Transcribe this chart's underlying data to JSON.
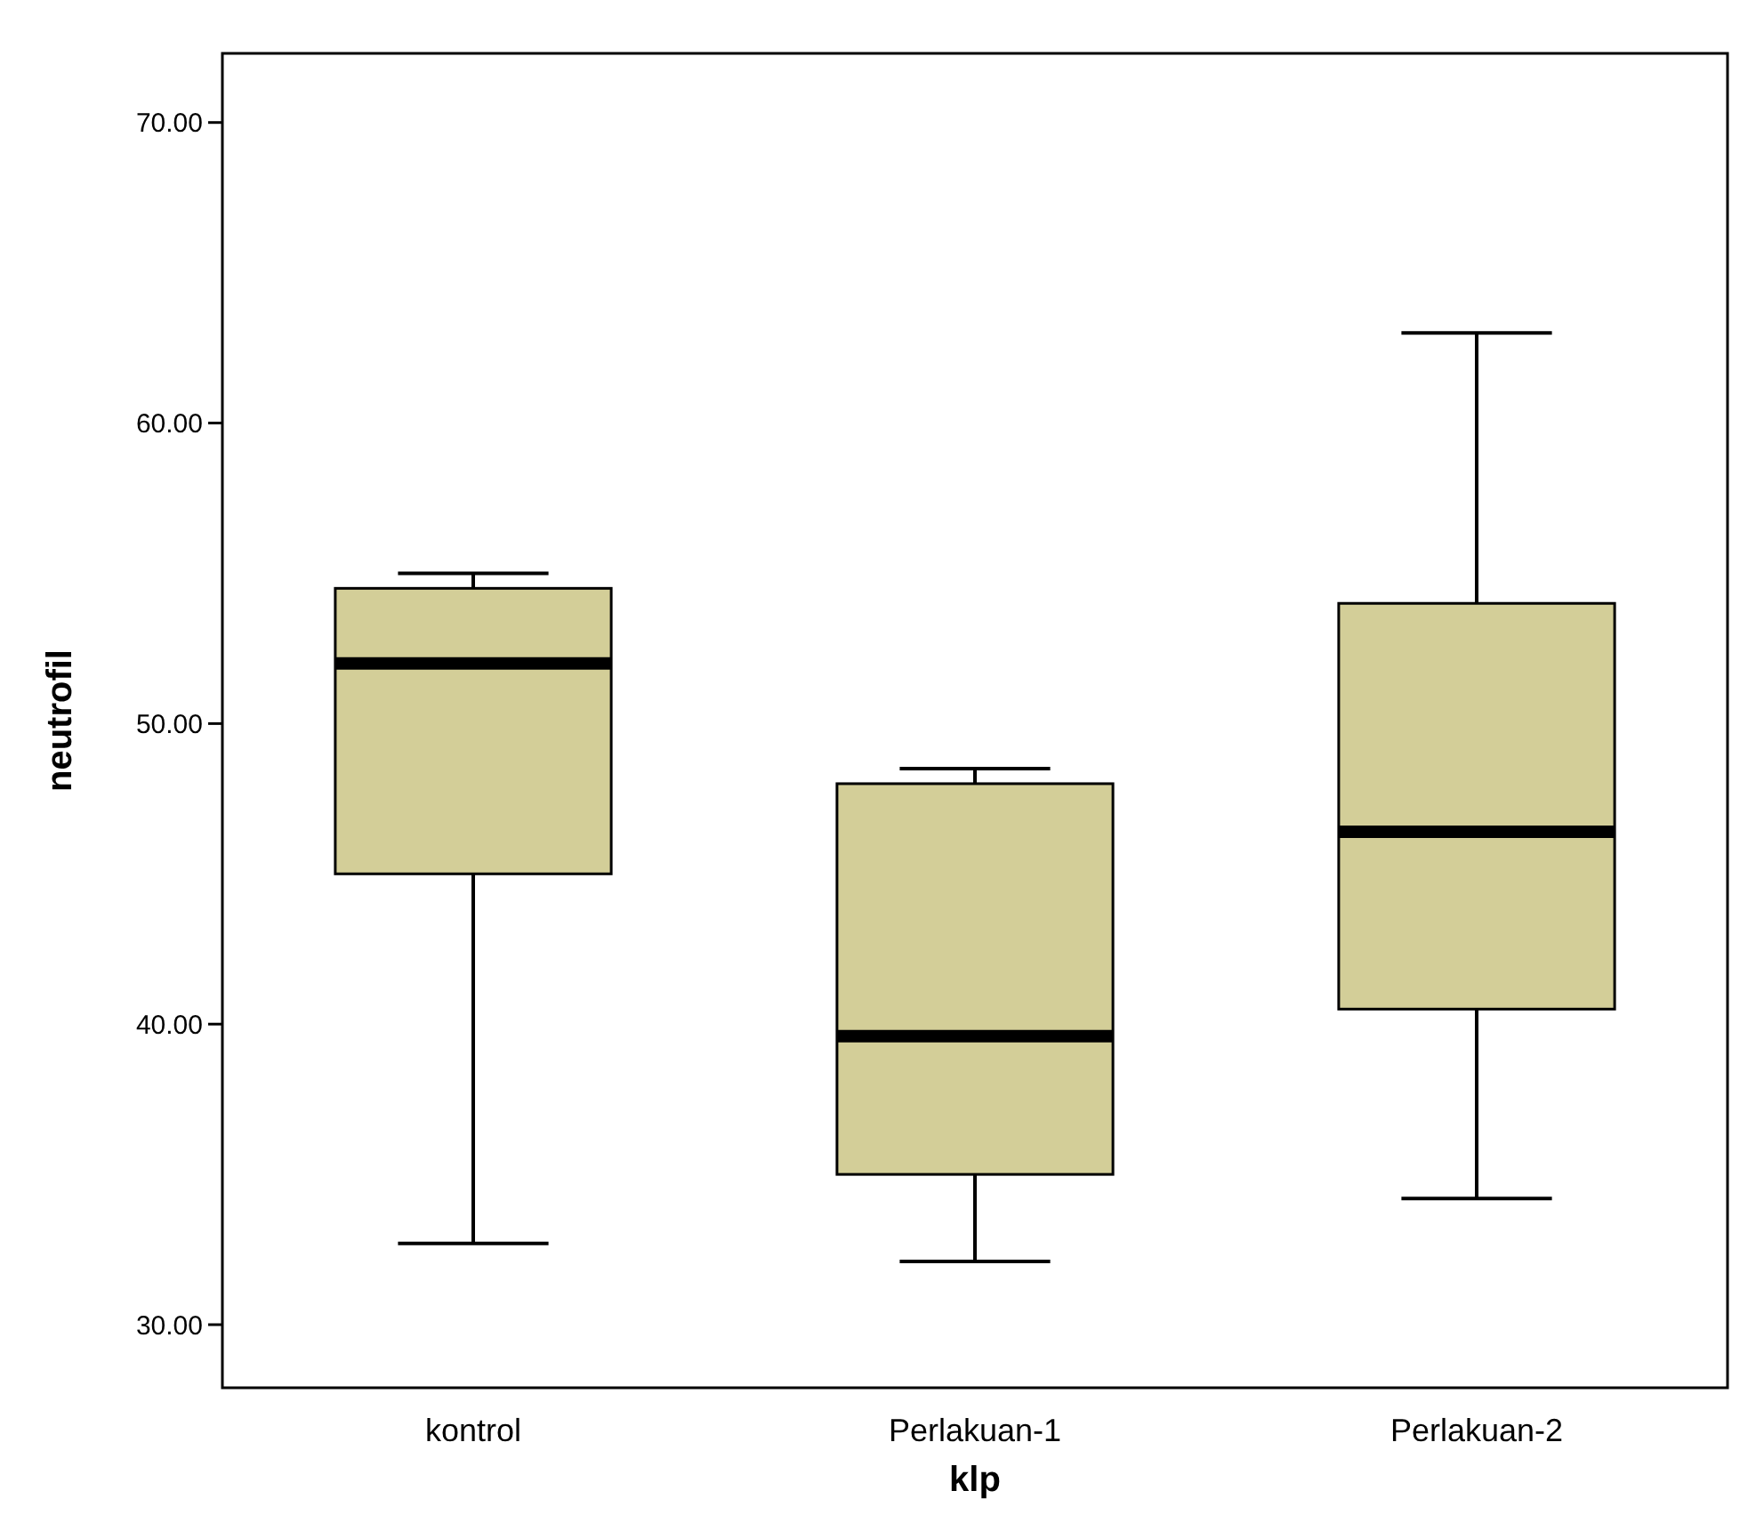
{
  "chart_data": {
    "type": "box",
    "xlabel": "klp",
    "ylabel": "neutrofil",
    "categories": [
      "kontrol",
      "Perlakuan-1",
      "Perlakuan-2"
    ],
    "color": "#d3ce98",
    "boxes": [
      {
        "low": 32.7,
        "q1": 45.0,
        "median": 52.0,
        "q3": 54.5,
        "high": 55.0
      },
      {
        "low": 32.1,
        "q1": 35.0,
        "median": 39.6,
        "q3": 48.0,
        "high": 48.5
      },
      {
        "low": 34.2,
        "q1": 40.5,
        "median": 46.4,
        "q3": 54.0,
        "high": 63.0
      }
    ],
    "ylim": [
      27.9,
      72.3
    ],
    "yticks": [
      {
        "value": 30,
        "label": "30.00"
      },
      {
        "value": 40,
        "label": "40.00"
      },
      {
        "value": 50,
        "label": "50.00"
      },
      {
        "value": 60,
        "label": "60.00"
      },
      {
        "value": 70,
        "label": "70.00"
      }
    ],
    "grid": false
  }
}
